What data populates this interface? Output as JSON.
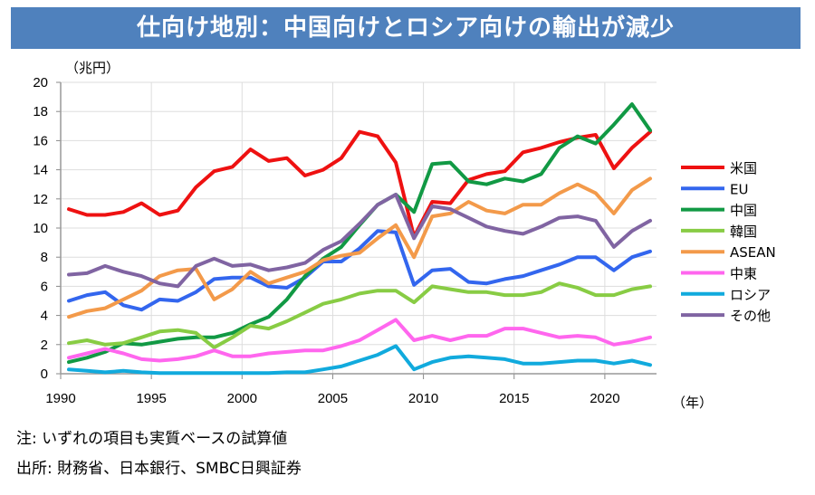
{
  "banner": {
    "title": "仕向け地別：中国向けとロシア向けの輸出が減少"
  },
  "unit_label": "（兆円）",
  "year_label": "（年）",
  "notes": {
    "note": "注: いずれの項目も実質ベースの試算値",
    "source": "出所: 財務省、日本銀行、SMBC日興証券"
  },
  "chart_data": {
    "type": "line",
    "title": "仕向け地別：中国向けとロシア向けの輸出が減少",
    "xlabel": "（年）",
    "ylabel": "（兆円）",
    "ylim": [
      0,
      20
    ],
    "yticks": [
      0,
      2,
      4,
      6,
      8,
      10,
      12,
      14,
      16,
      18,
      20
    ],
    "xticks": [
      1990,
      1995,
      2000,
      2005,
      2010,
      2015,
      2020
    ],
    "grid": true,
    "legend": "right",
    "x": [
      1990,
      1991,
      1992,
      1993,
      1994,
      1995,
      1996,
      1997,
      1998,
      1999,
      2000,
      2001,
      2002,
      2003,
      2004,
      2005,
      2006,
      2007,
      2008,
      2009,
      2010,
      2011,
      2012,
      2013,
      2014,
      2015,
      2016,
      2017,
      2018,
      2019,
      2020,
      2021,
      2022
    ],
    "series": [
      {
        "name": "米国",
        "color": "#ee1111",
        "values": [
          11.3,
          10.9,
          10.9,
          11.1,
          11.7,
          10.9,
          11.2,
          12.8,
          13.9,
          14.2,
          15.4,
          14.6,
          14.8,
          13.6,
          14.0,
          14.8,
          16.6,
          16.3,
          14.5,
          9.4,
          11.8,
          11.7,
          13.3,
          13.7,
          13.9,
          15.2,
          15.5,
          15.9,
          16.2,
          16.4,
          14.1,
          15.5,
          16.6
        ]
      },
      {
        "name": "EU",
        "color": "#3366ee",
        "values": [
          5.0,
          5.4,
          5.6,
          4.7,
          4.4,
          5.1,
          5.0,
          5.6,
          6.5,
          6.6,
          6.6,
          6.0,
          5.9,
          6.6,
          7.7,
          7.7,
          8.6,
          9.8,
          9.7,
          6.1,
          7.1,
          7.2,
          6.3,
          6.2,
          6.5,
          6.7,
          7.1,
          7.5,
          8.0,
          8.0,
          7.1,
          8.0,
          8.4
        ]
      },
      {
        "name": "中国",
        "color": "#119944",
        "values": [
          0.8,
          1.1,
          1.5,
          2.1,
          2.0,
          2.2,
          2.4,
          2.5,
          2.5,
          2.8,
          3.4,
          3.9,
          5.1,
          6.7,
          7.9,
          8.7,
          10.2,
          11.6,
          12.3,
          11.1,
          14.4,
          14.5,
          13.2,
          13.0,
          13.4,
          13.2,
          13.7,
          15.5,
          16.3,
          15.8,
          17.1,
          18.5,
          16.7
        ]
      },
      {
        "name": "韓国",
        "color": "#88cc44",
        "values": [
          2.1,
          2.3,
          2.0,
          2.1,
          2.5,
          2.9,
          3.0,
          2.8,
          1.8,
          2.5,
          3.3,
          3.1,
          3.6,
          4.2,
          4.8,
          5.1,
          5.5,
          5.7,
          5.7,
          4.9,
          6.0,
          5.8,
          5.6,
          5.6,
          5.4,
          5.4,
          5.6,
          6.2,
          5.9,
          5.4,
          5.4,
          5.8,
          6.0
        ]
      },
      {
        "name": "ASEAN",
        "color": "#f39a4a",
        "values": [
          3.9,
          4.3,
          4.5,
          5.1,
          5.7,
          6.7,
          7.1,
          7.2,
          5.1,
          5.8,
          7.0,
          6.2,
          6.6,
          7.0,
          7.8,
          8.1,
          8.3,
          9.3,
          10.2,
          8.0,
          10.8,
          11.0,
          11.8,
          11.2,
          11.0,
          11.6,
          11.6,
          12.4,
          13.0,
          12.4,
          11.0,
          12.6,
          13.4
        ]
      },
      {
        "name": "中東",
        "color": "#ff66ee",
        "values": [
          1.1,
          1.4,
          1.7,
          1.4,
          1.0,
          0.9,
          1.0,
          1.2,
          1.6,
          1.2,
          1.2,
          1.4,
          1.5,
          1.6,
          1.6,
          1.9,
          2.3,
          3.0,
          3.7,
          2.3,
          2.6,
          2.3,
          2.6,
          2.6,
          3.1,
          3.1,
          2.8,
          2.5,
          2.6,
          2.5,
          2.0,
          2.2,
          2.5
        ]
      },
      {
        "name": "ロシア",
        "color": "#11aadd",
        "values": [
          0.3,
          0.2,
          0.1,
          0.2,
          0.1,
          0.05,
          0.05,
          0.05,
          0.05,
          0.05,
          0.05,
          0.05,
          0.1,
          0.1,
          0.3,
          0.5,
          0.9,
          1.3,
          1.9,
          0.3,
          0.8,
          1.1,
          1.2,
          1.1,
          1.0,
          0.7,
          0.7,
          0.8,
          0.9,
          0.9,
          0.7,
          0.9,
          0.6
        ]
      },
      {
        "name": "その他",
        "color": "#8064a2",
        "values": [
          6.8,
          6.9,
          7.4,
          7.0,
          6.7,
          6.2,
          6.0,
          7.4,
          7.9,
          7.4,
          7.5,
          7.1,
          7.3,
          7.6,
          8.5,
          9.1,
          10.3,
          11.6,
          12.3,
          9.3,
          11.5,
          11.3,
          10.7,
          10.1,
          9.8,
          9.6,
          10.1,
          10.7,
          10.8,
          10.5,
          8.7,
          9.8,
          10.5
        ]
      }
    ]
  }
}
